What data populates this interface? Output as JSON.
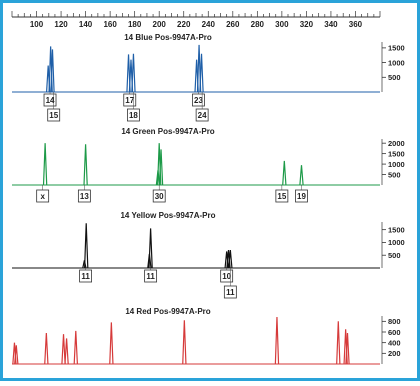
{
  "frame": {
    "border_color": "#2aa3d9"
  },
  "x_axis": {
    "min": 80,
    "max": 380,
    "major_ticks": [
      100,
      120,
      140,
      160,
      180,
      200,
      220,
      240,
      260,
      280,
      300,
      320,
      340,
      360
    ],
    "tick_labels": [
      "100",
      "120",
      "140",
      "160",
      "180",
      "200",
      "220",
      "240",
      "260",
      "280",
      "300",
      "320",
      "340",
      "360"
    ]
  },
  "chart_data": [
    {
      "type": "line",
      "title": "14 Blue Pos-9947A-Pro",
      "color": "#1f5fa8",
      "ylim": [
        0,
        1700
      ],
      "y_ticks": [
        500,
        1000,
        1500
      ],
      "y_tick_labels": [
        "500",
        "1000",
        "1500"
      ],
      "peaks": [
        {
          "x": 109.5,
          "height": 900
        },
        {
          "x": 111.5,
          "height": 1550
        },
        {
          "x": 113.0,
          "height": 1450
        },
        {
          "x": 175.0,
          "height": 1280
        },
        {
          "x": 177.0,
          "height": 1100
        },
        {
          "x": 179.0,
          "height": 1300
        },
        {
          "x": 230.5,
          "height": 1100
        },
        {
          "x": 232.5,
          "height": 1600
        },
        {
          "x": 234.5,
          "height": 1300
        }
      ],
      "allele_labels": [
        {
          "x": 111,
          "label": "14",
          "row": 1
        },
        {
          "x": 114,
          "label": "15",
          "row": 2
        },
        {
          "x": 176,
          "label": "17",
          "row": 1
        },
        {
          "x": 179,
          "label": "18",
          "row": 2
        },
        {
          "x": 232,
          "label": "23",
          "row": 1
        },
        {
          "x": 235,
          "label": "24",
          "row": 2
        }
      ]
    },
    {
      "type": "line",
      "title": "14 Green Pos-9947A-Pro",
      "color": "#1d9a48",
      "ylim": [
        0,
        2200
      ],
      "y_ticks": [
        500,
        1000,
        1500,
        2000
      ],
      "y_tick_labels": [
        "500",
        "1000",
        "1500",
        "2000"
      ],
      "peaks": [
        {
          "x": 107.0,
          "height": 2000
        },
        {
          "x": 140.0,
          "height": 1950
        },
        {
          "x": 200.0,
          "height": 2000
        },
        {
          "x": 201.5,
          "height": 1700
        },
        {
          "x": 199.0,
          "height": 700
        },
        {
          "x": 302.0,
          "height": 1150
        },
        {
          "x": 316.0,
          "height": 950
        }
      ],
      "allele_labels": [
        {
          "x": 105,
          "label": "x",
          "row": 1
        },
        {
          "x": 139,
          "label": "13",
          "row": 1
        },
        {
          "x": 200,
          "label": "30",
          "row": 1
        },
        {
          "x": 300,
          "label": "15",
          "row": 1
        },
        {
          "x": 316,
          "label": "19",
          "row": 1
        }
      ]
    },
    {
      "type": "line",
      "title": "14 Yellow Pos-9947A-Pro",
      "color": "#111111",
      "ylim": [
        0,
        1800
      ],
      "y_ticks": [
        500,
        1000,
        1500
      ],
      "y_tick_labels": [
        "500",
        "1000",
        "1500"
      ],
      "peaks": [
        {
          "x": 140.5,
          "height": 1750
        },
        {
          "x": 139.0,
          "height": 300
        },
        {
          "x": 193.0,
          "height": 1550
        },
        {
          "x": 192.0,
          "height": 550
        },
        {
          "x": 255.0,
          "height": 650
        },
        {
          "x": 256.5,
          "height": 700
        },
        {
          "x": 258.0,
          "height": 700
        }
      ],
      "allele_labels": [
        {
          "x": 140,
          "label": "11",
          "row": 1
        },
        {
          "x": 193,
          "label": "11",
          "row": 1
        },
        {
          "x": 255,
          "label": "10",
          "row": 1
        },
        {
          "x": 258,
          "label": "11",
          "row": 2
        }
      ]
    },
    {
      "type": "line",
      "title": "14 Red Pos-9947A-Pro",
      "color": "#d63a3a",
      "ylim": [
        0,
        900
      ],
      "y_ticks": [
        200,
        400,
        600,
        800
      ],
      "y_tick_labels": [
        "200",
        "400",
        "600",
        "800"
      ],
      "peaks": [
        {
          "x": 82.0,
          "height": 400
        },
        {
          "x": 83.5,
          "height": 350
        },
        {
          "x": 108.0,
          "height": 580
        },
        {
          "x": 122.0,
          "height": 560
        },
        {
          "x": 124.5,
          "height": 480
        },
        {
          "x": 132.0,
          "height": 620
        },
        {
          "x": 161.0,
          "height": 780
        },
        {
          "x": 220.5,
          "height": 820
        },
        {
          "x": 296.0,
          "height": 880
        },
        {
          "x": 346.0,
          "height": 800
        },
        {
          "x": 352.0,
          "height": 650
        },
        {
          "x": 353.5,
          "height": 580
        }
      ],
      "allele_labels": []
    }
  ]
}
